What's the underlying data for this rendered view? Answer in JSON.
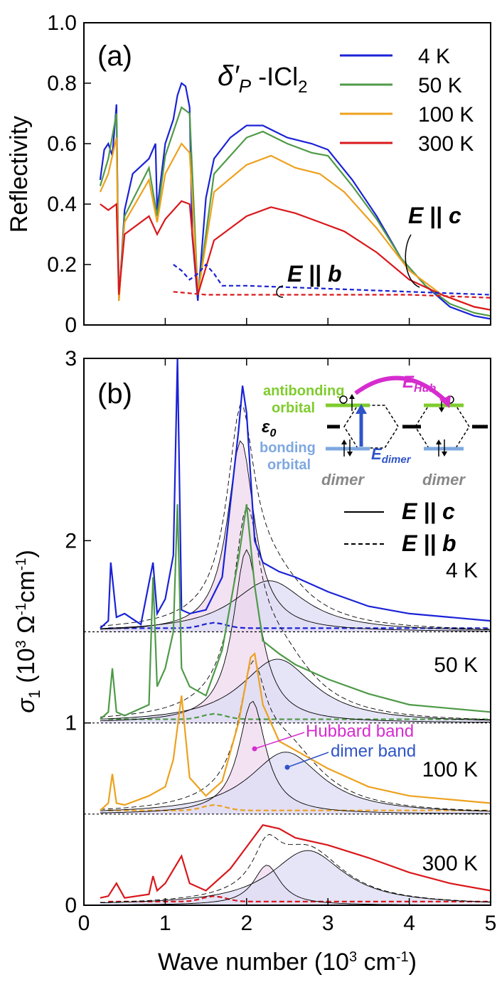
{
  "panel_a": {
    "label": "(a)",
    "compound": {
      "main": "δ′",
      "sub": "P",
      "rest": " -ICl",
      "sub2": "2"
    },
    "ylabel": "Reflectivity",
    "legend": [
      {
        "label": "4 K",
        "color": "#1a22d6"
      },
      {
        "label": "50 K",
        "color": "#4f9a48"
      },
      {
        "label": "100 K",
        "color": "#eda11e"
      },
      {
        "label": "300 K",
        "color": "#d9181c"
      }
    ],
    "annotation_c": {
      "E": "E",
      "rel": " || ",
      "axis": "c"
    },
    "annotation_b": {
      "E": "E",
      "rel": " || ",
      "axis": "b"
    }
  },
  "panel_b": {
    "label": "(b)",
    "ylabel": {
      "sym": "σ",
      "sub": "1",
      "text": " (10",
      "sup": "3",
      "unit": " Ω",
      "sup2": "-1",
      "cm": "cm",
      "sup3": "-1",
      "close": ")"
    },
    "xlabel": {
      "text": "Wave number (10",
      "sup": "3",
      "unit": " cm",
      "sup2": "-1",
      "close": ")"
    },
    "line_legend": [
      {
        "label": "E || c",
        "style": "solid"
      },
      {
        "label": "E || b",
        "style": "dashed"
      }
    ],
    "temps": [
      "4 K",
      "50 K",
      "100 K",
      "300 K"
    ],
    "hubbard_label": "Hubbard band",
    "dimer_label": "dimer band",
    "diagram": {
      "antibonding": "antibonding",
      "orbital1": "orbital",
      "bonding": "bonding",
      "orbital2": "orbital",
      "eps": "ε",
      "eps_sub": "0",
      "edimer": "E",
      "edimer_sub": "dimer",
      "ehub": "E",
      "ehub_sub": "Hub",
      "dimer1": "dimer",
      "dimer2": "dimer"
    }
  },
  "colors": {
    "t4": "#1a22d6",
    "t50": "#4f9a48",
    "t100": "#eda11e",
    "t300": "#d9181c",
    "hubbard": "#d62ccf",
    "dimer": "#2f54c8",
    "antibonding": "#7fcc2e",
    "bonding": "#7ea8e0",
    "hub_fill": "#eed8ee",
    "dim_fill": "#dcdcf4"
  },
  "chart_data": [
    {
      "type": "line",
      "title": "(a) δ′P -ICl2",
      "xlabel": "Wave number (10^3 cm^-1)",
      "ylabel": "Reflectivity",
      "xlim": [
        0,
        5
      ],
      "ylim": [
        0,
        1.0
      ],
      "xticks": [
        0,
        1,
        2,
        3,
        4,
        5
      ],
      "yticks": [
        "0",
        "0.2",
        "0.4",
        "0.6",
        "0.8",
        "1.0"
      ],
      "series": [
        {
          "name": "4 K E||c",
          "x": [
            0.2,
            0.25,
            0.3,
            0.35,
            0.4,
            0.43,
            0.5,
            0.6,
            0.8,
            0.88,
            0.9,
            1.0,
            1.1,
            1.15,
            1.2,
            1.25,
            1.3,
            1.33,
            1.4,
            1.5,
            1.6,
            1.8,
            2.0,
            2.2,
            2.5,
            2.8,
            3.0,
            3.3,
            3.6,
            3.9,
            4.2,
            4.5,
            4.8,
            5.0
          ],
          "y": [
            0.48,
            0.58,
            0.6,
            0.56,
            0.73,
            0.08,
            0.38,
            0.5,
            0.55,
            0.6,
            0.38,
            0.6,
            0.68,
            0.76,
            0.8,
            0.79,
            0.72,
            0.3,
            0.08,
            0.42,
            0.55,
            0.62,
            0.66,
            0.66,
            0.62,
            0.6,
            0.58,
            0.48,
            0.36,
            0.22,
            0.13,
            0.06,
            0.03,
            0.02
          ]
        },
        {
          "name": "50 K E||c",
          "x": [
            0.2,
            0.3,
            0.4,
            0.43,
            0.5,
            0.8,
            0.9,
            1.0,
            1.2,
            1.3,
            1.4,
            1.6,
            2.0,
            2.2,
            2.5,
            2.8,
            3.0,
            3.3,
            3.6,
            3.9,
            4.2,
            4.5,
            4.8,
            5.0
          ],
          "y": [
            0.46,
            0.55,
            0.7,
            0.08,
            0.36,
            0.52,
            0.36,
            0.56,
            0.72,
            0.7,
            0.1,
            0.5,
            0.62,
            0.64,
            0.6,
            0.57,
            0.56,
            0.46,
            0.35,
            0.22,
            0.13,
            0.07,
            0.04,
            0.03
          ]
        },
        {
          "name": "100 K E||c",
          "x": [
            0.2,
            0.3,
            0.4,
            0.43,
            0.5,
            0.8,
            0.9,
            1.0,
            1.2,
            1.3,
            1.4,
            1.6,
            2.0,
            2.3,
            2.6,
            2.9,
            3.2,
            3.6,
            4.0,
            4.4,
            4.8,
            5.0
          ],
          "y": [
            0.44,
            0.5,
            0.62,
            0.08,
            0.34,
            0.48,
            0.34,
            0.5,
            0.6,
            0.57,
            0.1,
            0.44,
            0.53,
            0.56,
            0.52,
            0.5,
            0.44,
            0.32,
            0.18,
            0.1,
            0.06,
            0.05
          ]
        },
        {
          "name": "300 K E||c",
          "x": [
            0.2,
            0.3,
            0.4,
            0.43,
            0.5,
            0.8,
            0.9,
            1.0,
            1.2,
            1.3,
            1.4,
            1.6,
            2.0,
            2.3,
            2.6,
            2.9,
            3.2,
            3.6,
            4.0,
            4.4,
            4.8,
            5.0
          ],
          "y": [
            0.4,
            0.38,
            0.4,
            0.1,
            0.3,
            0.36,
            0.3,
            0.35,
            0.41,
            0.4,
            0.1,
            0.28,
            0.36,
            0.39,
            0.37,
            0.34,
            0.31,
            0.24,
            0.15,
            0.1,
            0.06,
            0.05
          ]
        },
        {
          "name": "4 K E||b",
          "x": [
            1.1,
            1.2,
            1.3,
            1.4,
            1.5,
            1.6,
            1.7,
            2.0,
            3.0,
            4.0,
            5.0
          ],
          "y": [
            0.2,
            0.18,
            0.15,
            0.17,
            0.2,
            0.17,
            0.13,
            0.13,
            0.12,
            0.11,
            0.1
          ]
        },
        {
          "name": "300 K E||b",
          "x": [
            1.1,
            1.5,
            2.0,
            3.0,
            4.0,
            5.0
          ],
          "y": [
            0.11,
            0.1,
            0.1,
            0.1,
            0.1,
            0.09
          ]
        }
      ]
    },
    {
      "type": "line",
      "title": "(b)",
      "xlabel": "Wave number (10^3 cm^-1)",
      "ylabel": "σ1 (10^3 Ω^-1 cm^-1)",
      "xlim": [
        0,
        5
      ],
      "ylim": [
        0,
        3
      ],
      "xticks": [
        0,
        1,
        2,
        3,
        4,
        5
      ],
      "yticks": [
        "0",
        "1",
        "2",
        "3"
      ],
      "offsets": {
        "4 K": 1.5,
        "50 K": 1.0,
        "100 K": 0.5,
        "300 K": 0.0
      },
      "series": [
        {
          "name": "4 K E||c",
          "x": [
            0.2,
            0.3,
            0.33,
            0.4,
            0.5,
            0.7,
            0.85,
            0.9,
            1.0,
            1.1,
            1.15,
            1.2,
            1.3,
            1.5,
            1.7,
            1.8,
            1.9,
            1.95,
            2.0,
            2.1,
            2.2,
            2.4,
            2.6,
            3.0,
            3.5,
            4.0,
            4.5,
            5.0
          ],
          "y": [
            1.52,
            1.56,
            1.88,
            1.58,
            1.6,
            1.54,
            1.88,
            1.6,
            1.68,
            1.92,
            3.0,
            1.62,
            1.6,
            1.62,
            1.8,
            2.2,
            2.6,
            2.85,
            2.7,
            2.0,
            1.88,
            1.83,
            1.8,
            1.72,
            1.64,
            1.6,
            1.58,
            1.56
          ]
        },
        {
          "name": "50 K E||c",
          "x": [
            0.2,
            0.3,
            0.35,
            0.4,
            0.5,
            0.8,
            0.85,
            0.9,
            1.0,
            1.1,
            1.15,
            1.2,
            1.3,
            1.5,
            1.7,
            1.9,
            2.0,
            2.1,
            2.2,
            2.4,
            2.6,
            3.0,
            3.5,
            4.0,
            4.5,
            5.0
          ],
          "y": [
            1.02,
            1.06,
            1.3,
            1.06,
            1.04,
            1.1,
            1.8,
            1.2,
            1.3,
            1.5,
            2.2,
            1.3,
            1.2,
            1.15,
            1.4,
            1.9,
            2.2,
            1.75,
            1.45,
            1.38,
            1.32,
            1.24,
            1.16,
            1.1,
            1.08,
            1.06
          ]
        },
        {
          "name": "100 K E||c",
          "x": [
            0.2,
            0.3,
            0.35,
            0.4,
            0.5,
            0.8,
            1.0,
            1.1,
            1.2,
            1.3,
            1.5,
            1.7,
            1.9,
            2.05,
            2.1,
            2.2,
            2.4,
            2.6,
            3.0,
            3.5,
            4.0,
            4.5,
            5.0
          ],
          "y": [
            0.52,
            0.56,
            0.72,
            0.56,
            0.55,
            0.6,
            0.65,
            0.8,
            1.15,
            0.7,
            0.6,
            0.68,
            1.0,
            1.36,
            1.38,
            1.1,
            0.9,
            0.85,
            0.75,
            0.65,
            0.6,
            0.58,
            0.56
          ]
        },
        {
          "name": "300 K E||c",
          "x": [
            0.2,
            0.3,
            0.4,
            0.5,
            0.8,
            0.85,
            0.9,
            1.0,
            1.2,
            1.3,
            1.5,
            1.8,
            2.0,
            2.2,
            2.4,
            2.6,
            3.0,
            3.5,
            4.0,
            4.5,
            5.0
          ],
          "y": [
            0.04,
            0.05,
            0.12,
            0.04,
            0.06,
            0.16,
            0.08,
            0.12,
            0.27,
            0.12,
            0.08,
            0.2,
            0.32,
            0.44,
            0.42,
            0.37,
            0.33,
            0.26,
            0.18,
            0.12,
            0.08
          ]
        },
        {
          "name": "Hubbard band 4 K",
          "center": 1.93,
          "peak": 1.05
        },
        {
          "name": "dimer band 4 K",
          "center": 2.28,
          "peak": 0.28
        },
        {
          "name": "Hubbard band 50 K",
          "center": 2.0,
          "peak": 0.95
        },
        {
          "name": "dimer band 50 K",
          "center": 2.38,
          "peak": 0.35
        },
        {
          "name": "Hubbard band 100 K",
          "center": 2.07,
          "peak": 0.62
        },
        {
          "name": "dimer band 100 K",
          "center": 2.48,
          "peak": 0.34
        },
        {
          "name": "Hubbard band 300 K",
          "center": 2.25,
          "peak": 0.22
        },
        {
          "name": "dimer band 300 K",
          "center": 2.75,
          "peak": 0.3
        }
      ]
    }
  ]
}
